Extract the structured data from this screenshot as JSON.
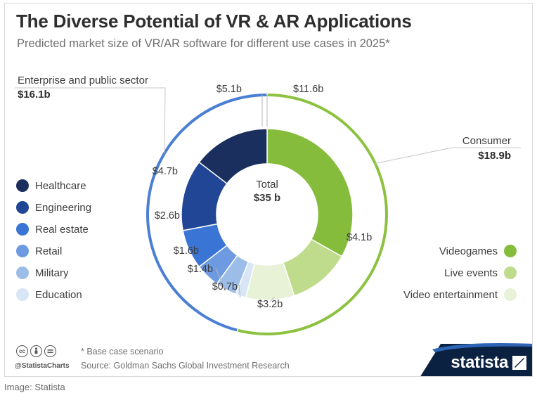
{
  "header": {
    "title": "The Diverse Potential of VR & AR Applications",
    "subtitle": "Predicted market size of VR/AR software for different use cases in 2025*"
  },
  "chart_data": {
    "type": "pie",
    "center_label": "Total",
    "center_value": "$35 b",
    "unit": "$b",
    "groups": [
      {
        "name": "Enterprise and public sector",
        "total_label": "$16.1b",
        "color": "#4a7fd4",
        "side": "left"
      },
      {
        "name": "Consumer",
        "total_label": "$18.9b",
        "color": "#8cc23f",
        "side": "right"
      }
    ],
    "series": [
      {
        "name": "Videogames",
        "value": 11.6,
        "label": "$11.6b",
        "group": 1,
        "color": "#85bc3c"
      },
      {
        "name": "Live events",
        "value": 4.1,
        "label": "$4.1b",
        "group": 1,
        "color": "#bfdc8c"
      },
      {
        "name": "Video entertainment",
        "value": 3.2,
        "label": "$3.2b",
        "group": 1,
        "color": "#e8f2d6"
      },
      {
        "name": "Education",
        "value": 0.7,
        "label": "$0.7b",
        "group": 0,
        "color": "#d7e5f7"
      },
      {
        "name": "Military",
        "value": 1.4,
        "label": "$1.4b",
        "group": 0,
        "color": "#9dbde9"
      },
      {
        "name": "Retail",
        "value": 1.6,
        "label": "$1.6b",
        "group": 0,
        "color": "#6d9ae0"
      },
      {
        "name": "Real estate",
        "value": 2.6,
        "label": "$2.6b",
        "group": 0,
        "color": "#3a75d5"
      },
      {
        "name": "Engineering",
        "value": 4.7,
        "label": "$4.7b",
        "group": 0,
        "color": "#214695"
      },
      {
        "name": "Healthcare",
        "value": 5.1,
        "label": "$5.1b",
        "group": 0,
        "color": "#1b2f5e"
      }
    ],
    "legend_left": [
      "Healthcare",
      "Engineering",
      "Real estate",
      "Retail",
      "Military",
      "Education"
    ],
    "legend_right": [
      "Videogames",
      "Live events",
      "Video entertainment"
    ]
  },
  "footer": {
    "note": "* Base case scenario",
    "source": "Source: Goldman Sachs Global Investment Research",
    "handle": "@StatistaCharts",
    "cc_icons": [
      "cc",
      "by",
      "nd"
    ],
    "brand": "statista",
    "brand_color": "#0b2141",
    "brand_accent": "#2d64b5"
  },
  "caption": "Image: Statista"
}
